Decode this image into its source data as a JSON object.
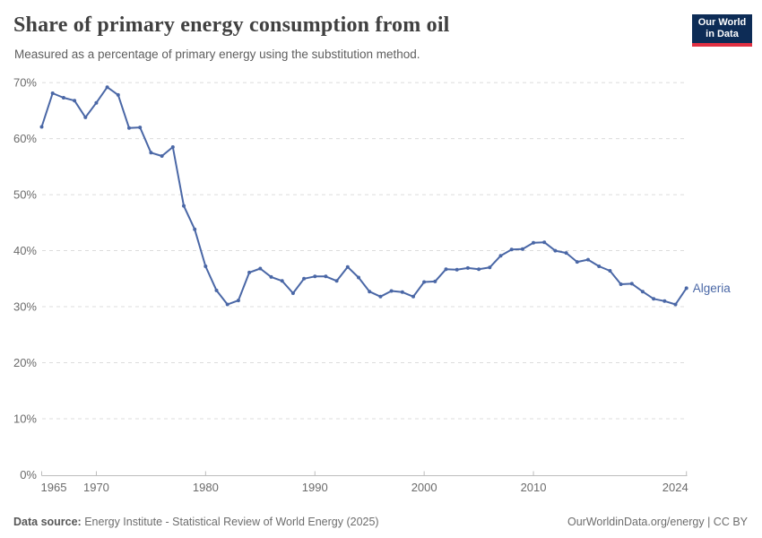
{
  "header": {
    "title": "Share of primary energy consumption from oil",
    "subtitle": "Measured as a percentage of primary energy using the substitution method.",
    "logo": {
      "line1": "Our World",
      "line2": "in Data",
      "bg": "#0D2C56",
      "accent": "#E03042"
    }
  },
  "chart_data": {
    "type": "line",
    "title": "Share of primary energy consumption from oil",
    "subtitle": "Measured as a percentage of primary energy using the substitution method.",
    "xlabel": "",
    "ylabel": "",
    "ylim": [
      0,
      70
    ],
    "yticks": [
      0,
      10,
      20,
      30,
      40,
      50,
      60,
      70
    ],
    "ytick_suffix": "%",
    "xticks": [
      1965,
      1970,
      1980,
      1990,
      2000,
      2010,
      2024
    ],
    "grid": "horizontal-dashed",
    "legend_position": "end-of-line",
    "x": [
      1965,
      1966,
      1967,
      1968,
      1969,
      1970,
      1971,
      1972,
      1973,
      1974,
      1975,
      1976,
      1977,
      1978,
      1979,
      1980,
      1981,
      1982,
      1983,
      1984,
      1985,
      1986,
      1987,
      1988,
      1989,
      1990,
      1991,
      1992,
      1993,
      1994,
      1995,
      1996,
      1997,
      1998,
      1999,
      2000,
      2001,
      2002,
      2003,
      2004,
      2005,
      2006,
      2007,
      2008,
      2009,
      2010,
      2011,
      2012,
      2013,
      2014,
      2015,
      2016,
      2017,
      2018,
      2019,
      2020,
      2021,
      2022,
      2023,
      2024
    ],
    "series": [
      {
        "name": "Algeria",
        "color": "#4A67A6",
        "values": [
          62.1,
          68.1,
          67.3,
          66.8,
          63.8,
          66.4,
          69.2,
          67.8,
          61.9,
          62.0,
          57.5,
          56.9,
          58.5,
          48.0,
          43.8,
          37.2,
          32.9,
          30.4,
          31.1,
          36.1,
          36.8,
          35.3,
          34.6,
          32.4,
          35.0,
          35.4,
          35.4,
          34.6,
          37.1,
          35.2,
          32.7,
          31.8,
          32.8,
          32.6,
          31.8,
          34.4,
          34.5,
          36.7,
          36.6,
          36.9,
          36.7,
          37.0,
          39.1,
          40.2,
          40.3,
          41.4,
          41.5,
          40.0,
          39.6,
          38.0,
          38.4,
          37.2,
          36.4,
          34.0,
          34.1,
          32.7,
          31.4,
          31.0,
          30.4,
          33.3
        ]
      }
    ]
  },
  "footer": {
    "datasource_label": "Data source:",
    "datasource_value": " Energy Institute - Statistical Review of World Energy (2025)",
    "right_text": "OurWorldinData.org/energy | CC BY"
  }
}
